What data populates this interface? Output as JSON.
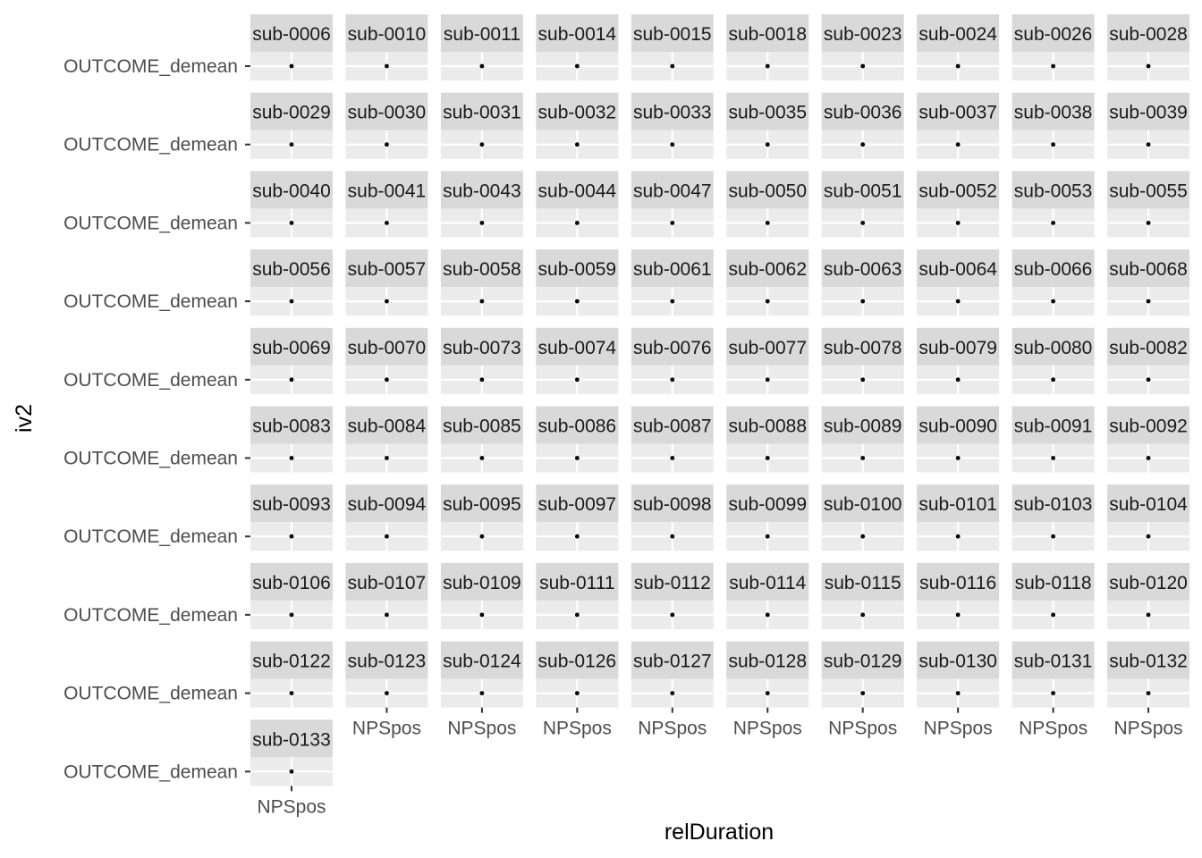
{
  "chart_data": {
    "type": "scatter",
    "facet_by": "subject",
    "facet_columns": 10,
    "xlabel": "relDuration",
    "ylabel": "iv2",
    "x_categories": [
      "NPSpos"
    ],
    "y_categories": [
      "OUTCOME_demean"
    ],
    "grid": true,
    "panels": [
      "sub-0006",
      "sub-0010",
      "sub-0011",
      "sub-0014",
      "sub-0015",
      "sub-0018",
      "sub-0023",
      "sub-0024",
      "sub-0026",
      "sub-0028",
      "sub-0029",
      "sub-0030",
      "sub-0031",
      "sub-0032",
      "sub-0033",
      "sub-0035",
      "sub-0036",
      "sub-0037",
      "sub-0038",
      "sub-0039",
      "sub-0040",
      "sub-0041",
      "sub-0043",
      "sub-0044",
      "sub-0047",
      "sub-0050",
      "sub-0051",
      "sub-0052",
      "sub-0053",
      "sub-0055",
      "sub-0056",
      "sub-0057",
      "sub-0058",
      "sub-0059",
      "sub-0061",
      "sub-0062",
      "sub-0063",
      "sub-0064",
      "sub-0066",
      "sub-0068",
      "sub-0069",
      "sub-0070",
      "sub-0073",
      "sub-0074",
      "sub-0076",
      "sub-0077",
      "sub-0078",
      "sub-0079",
      "sub-0080",
      "sub-0082",
      "sub-0083",
      "sub-0084",
      "sub-0085",
      "sub-0086",
      "sub-0087",
      "sub-0088",
      "sub-0089",
      "sub-0090",
      "sub-0091",
      "sub-0092",
      "sub-0093",
      "sub-0094",
      "sub-0095",
      "sub-0097",
      "sub-0098",
      "sub-0099",
      "sub-0100",
      "sub-0101",
      "sub-0103",
      "sub-0104",
      "sub-0106",
      "sub-0107",
      "sub-0109",
      "sub-0111",
      "sub-0112",
      "sub-0114",
      "sub-0115",
      "sub-0116",
      "sub-0118",
      "sub-0120",
      "sub-0122",
      "sub-0123",
      "sub-0124",
      "sub-0126",
      "sub-0127",
      "sub-0128",
      "sub-0129",
      "sub-0130",
      "sub-0131",
      "sub-0132",
      "sub-0133"
    ],
    "point": {
      "x": "NPSpos",
      "y": "OUTCOME_demean"
    },
    "colors": {
      "panel_background": "#ebebeb",
      "strip_background": "#d9d9d9",
      "grid": "#ffffff",
      "point": "#000000",
      "tick": "#333333"
    }
  }
}
